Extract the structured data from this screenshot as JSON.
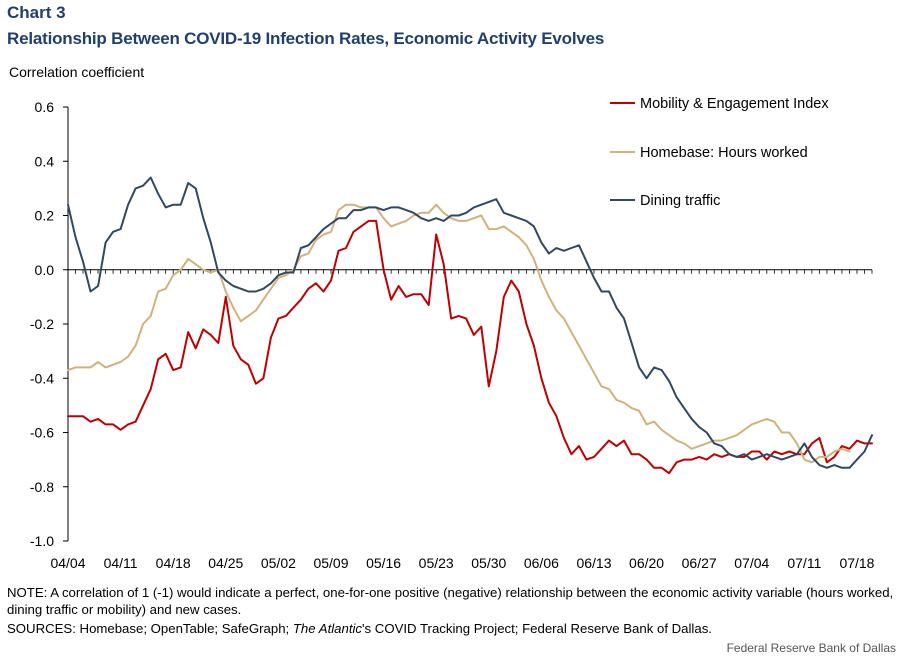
{
  "header": {
    "chart_label": "Chart 3",
    "title": "Relationship Between COVID-19 Infection Rates, Economic Activity Evolves"
  },
  "footer": {
    "note": "NOTE: A correlation of 1 (-1) would indicate a perfect, one-for-one positive (negative) relationship between the  economic activity variable (hours worked, dining traffic or mobility) and new cases.",
    "sources_prefix": "SOURCES: Homebase; OpenTable; SafeGraph; ",
    "sources_italic": "The Atlantic",
    "sources_suffix": "'s COVID Tracking Project; Federal Reserve Bank of Dallas.",
    "credit": "Federal Reserve  Bank of Dallas"
  },
  "colors": {
    "mobility": "#c00000",
    "homebase": "#d4b07a",
    "dining": "#2f4863",
    "axis": "#000000"
  },
  "chart_data": {
    "type": "line",
    "title": "Relationship Between COVID-19 Infection Rates, Economic Activity Evolves",
    "xlabel": "",
    "ylabel": "Correlation coefficient",
    "ylim": [
      -1.0,
      0.6
    ],
    "yticks": [
      "0.6",
      "0.4",
      "0.2",
      "0.0",
      "-0.2",
      "-0.4",
      "-0.6",
      "-0.8",
      "-1.0"
    ],
    "x_start": "04/04",
    "x_end": "07/18",
    "xticks": [
      "04/04",
      "04/11",
      "04/18",
      "04/25",
      "05/02",
      "05/09",
      "05/16",
      "05/23",
      "05/30",
      "06/06",
      "06/13",
      "06/20",
      "06/27",
      "07/04",
      "07/11",
      "07/18"
    ],
    "legend_position": "top-right",
    "series": [
      {
        "name": "Mobility & Engagement Index",
        "color": "#c00000",
        "values": [
          -0.54,
          -0.54,
          -0.54,
          -0.56,
          -0.55,
          -0.57,
          -0.57,
          -0.59,
          -0.57,
          -0.56,
          -0.5,
          -0.44,
          -0.33,
          -0.31,
          -0.37,
          -0.36,
          -0.23,
          -0.29,
          -0.22,
          -0.24,
          -0.27,
          -0.1,
          -0.28,
          -0.33,
          -0.35,
          -0.42,
          -0.4,
          -0.25,
          -0.18,
          -0.17,
          -0.14,
          -0.11,
          -0.07,
          -0.05,
          -0.08,
          -0.04,
          0.07,
          0.08,
          0.14,
          0.16,
          0.18,
          0.18,
          0.0,
          -0.11,
          -0.06,
          -0.1,
          -0.09,
          -0.09,
          -0.13,
          0.13,
          0.02,
          -0.18,
          -0.17,
          -0.18,
          -0.24,
          -0.21,
          -0.43,
          -0.3,
          -0.1,
          -0.04,
          -0.08,
          -0.2,
          -0.28,
          -0.4,
          -0.49,
          -0.54,
          -0.62,
          -0.68,
          -0.65,
          -0.7,
          -0.69,
          -0.66,
          -0.63,
          -0.65,
          -0.63,
          -0.68,
          -0.68,
          -0.7,
          -0.73,
          -0.73,
          -0.75,
          -0.71,
          -0.7,
          -0.7,
          -0.69,
          -0.7,
          -0.68,
          -0.69,
          -0.68,
          -0.69,
          -0.69,
          -0.67,
          -0.67,
          -0.7,
          -0.67,
          -0.68,
          -0.67,
          -0.68,
          -0.68,
          -0.64,
          -0.62,
          -0.71,
          -0.69,
          -0.65,
          -0.66,
          -0.63,
          -0.64,
          -0.64
        ]
      },
      {
        "name": "Homebase: Hours worked",
        "color": "#d4b07a",
        "values": [
          -0.37,
          -0.36,
          -0.36,
          -0.36,
          -0.34,
          -0.36,
          -0.35,
          -0.34,
          -0.32,
          -0.28,
          -0.2,
          -0.17,
          -0.08,
          -0.07,
          -0.02,
          0.0,
          0.04,
          0.02,
          0.0,
          -0.01,
          0.0,
          -0.08,
          -0.14,
          -0.19,
          -0.17,
          -0.15,
          -0.11,
          -0.07,
          -0.03,
          -0.02,
          0.0,
          0.05,
          0.06,
          0.11,
          0.13,
          0.14,
          0.22,
          0.24,
          0.24,
          0.23,
          0.23,
          0.23,
          0.19,
          0.16,
          0.17,
          0.18,
          0.2,
          0.21,
          0.21,
          0.24,
          0.21,
          0.19,
          0.18,
          0.18,
          0.19,
          0.2,
          0.15,
          0.15,
          0.16,
          0.14,
          0.12,
          0.09,
          0.04,
          -0.04,
          -0.1,
          -0.15,
          -0.18,
          -0.23,
          -0.28,
          -0.33,
          -0.38,
          -0.43,
          -0.44,
          -0.48,
          -0.49,
          -0.51,
          -0.52,
          -0.57,
          -0.56,
          -0.59,
          -0.61,
          -0.63,
          -0.64,
          -0.66,
          -0.65,
          -0.64,
          -0.63,
          -0.63,
          -0.62,
          -0.61,
          -0.59,
          -0.57,
          -0.56,
          -0.55,
          -0.56,
          -0.6,
          -0.6,
          -0.64,
          -0.7,
          -0.71,
          -0.69,
          -0.69,
          -0.67,
          -0.66,
          -0.67
        ]
      },
      {
        "name": "Dining traffic",
        "color": "#2f4863",
        "values": [
          0.24,
          0.12,
          0.03,
          -0.08,
          -0.06,
          0.1,
          0.14,
          0.15,
          0.24,
          0.3,
          0.31,
          0.34,
          0.28,
          0.23,
          0.24,
          0.24,
          0.32,
          0.3,
          0.19,
          0.1,
          -0.01,
          -0.04,
          -0.06,
          -0.07,
          -0.08,
          -0.08,
          -0.07,
          -0.05,
          -0.02,
          -0.01,
          -0.01,
          0.08,
          0.09,
          0.12,
          0.15,
          0.17,
          0.19,
          0.19,
          0.22,
          0.22,
          0.23,
          0.23,
          0.22,
          0.23,
          0.23,
          0.22,
          0.21,
          0.19,
          0.18,
          0.19,
          0.18,
          0.2,
          0.2,
          0.21,
          0.23,
          0.24,
          0.25,
          0.26,
          0.21,
          0.2,
          0.19,
          0.18,
          0.16,
          0.1,
          0.06,
          0.08,
          0.07,
          0.08,
          0.09,
          0.03,
          -0.03,
          -0.08,
          -0.08,
          -0.14,
          -0.18,
          -0.27,
          -0.36,
          -0.4,
          -0.36,
          -0.37,
          -0.41,
          -0.47,
          -0.51,
          -0.55,
          -0.58,
          -0.6,
          -0.64,
          -0.65,
          -0.68,
          -0.69,
          -0.68,
          -0.7,
          -0.69,
          -0.68,
          -0.69,
          -0.7,
          -0.69,
          -0.68,
          -0.64,
          -0.69,
          -0.72,
          -0.73,
          -0.72,
          -0.73,
          -0.73,
          -0.7,
          -0.67,
          -0.61
        ]
      }
    ]
  }
}
